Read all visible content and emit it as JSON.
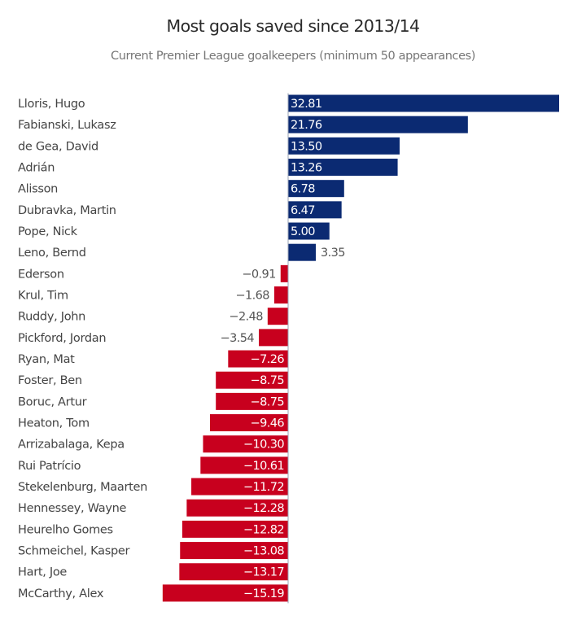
{
  "chart_data": {
    "type": "bar",
    "orientation": "horizontal",
    "title": "Most goals saved since 2013/14",
    "subtitle": "Current Premier League goalkeepers (minimum 50 appearances)",
    "xlabel": "",
    "ylabel": "",
    "grid": false,
    "xlim": [
      -15.19,
      32.81
    ],
    "colors": {
      "positive": "#0b2a72",
      "negative": "#c8001e"
    },
    "categories": [
      "Lloris, Hugo",
      "Fabianski, Lukasz",
      "de Gea, David",
      "Adrián",
      "Alisson",
      "Dubravka, Martin",
      "Pope, Nick",
      "Leno, Bernd",
      "Ederson",
      "Krul, Tim",
      "Ruddy, John",
      "Pickford, Jordan",
      "Ryan, Mat",
      "Foster, Ben",
      "Boruc, Artur",
      "Heaton, Tom",
      "Arrizabalaga, Kepa",
      "Rui Patrício",
      "Stekelenburg, Maarten",
      "Hennessey, Wayne",
      "Heurelho Gomes",
      "Schmeichel, Kasper",
      "Hart, Joe",
      "McCarthy, Alex"
    ],
    "values": [
      32.81,
      21.76,
      13.5,
      13.26,
      6.78,
      6.47,
      5.0,
      3.35,
      -0.91,
      -1.68,
      -2.48,
      -3.54,
      -7.26,
      -8.75,
      -8.75,
      -9.46,
      -10.3,
      -10.61,
      -11.72,
      -12.28,
      -12.82,
      -13.08,
      -13.17,
      -15.19
    ],
    "labels": [
      "32.81",
      "21.76",
      "13.50",
      "13.26",
      "6.78",
      "6.47",
      "5.00",
      "3.35",
      "−0.91",
      "−1.68",
      "−2.48",
      "−3.54",
      "−7.26",
      "−8.75",
      "−8.75",
      "−9.46",
      "−10.30",
      "−10.61",
      "−11.72",
      "−12.28",
      "−12.82",
      "−13.08",
      "−13.17",
      "−15.19"
    ]
  }
}
